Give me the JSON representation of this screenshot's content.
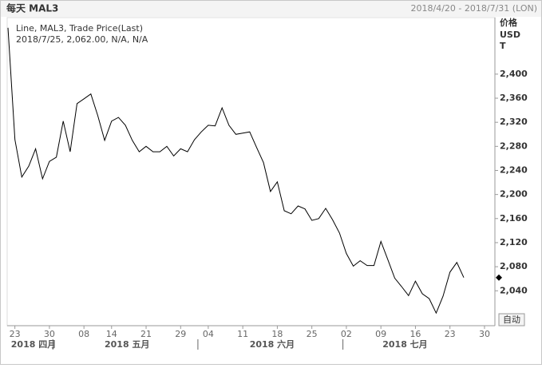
{
  "chart_data": {
    "type": "line",
    "title": "每天 MAL3",
    "date_range": "2018/4/20 - 2018/7/31 (LON)",
    "y_axis_label": [
      "价格",
      "USD",
      "T"
    ],
    "legend_lines": [
      "Line, MAL3, Trade Price(Last)",
      "2018/7/25, 2,062.00, N/A, N/A"
    ],
    "button": "自动",
    "x": [
      "2018/4/20",
      "2018/4/23",
      "2018/4/24",
      "2018/4/25",
      "2018/4/26",
      "2018/4/27",
      "2018/4/30",
      "2018/5/1",
      "2018/5/2",
      "2018/5/3",
      "2018/5/4",
      "2018/5/8",
      "2018/5/9",
      "2018/5/10",
      "2018/5/11",
      "2018/5/14",
      "2018/5/15",
      "2018/5/16",
      "2018/5/17",
      "2018/5/18",
      "2018/5/21",
      "2018/5/22",
      "2018/5/23",
      "2018/5/24",
      "2018/5/25",
      "2018/5/29",
      "2018/5/30",
      "2018/5/31",
      "2018/6/1",
      "2018/6/4",
      "2018/6/5",
      "2018/6/6",
      "2018/6/7",
      "2018/6/8",
      "2018/6/11",
      "2018/6/12",
      "2018/6/13",
      "2018/6/14",
      "2018/6/15",
      "2018/6/18",
      "2018/6/19",
      "2018/6/20",
      "2018/6/21",
      "2018/6/22",
      "2018/6/25",
      "2018/6/26",
      "2018/6/27",
      "2018/6/28",
      "2018/6/29",
      "2018/7/2",
      "2018/7/3",
      "2018/7/4",
      "2018/7/5",
      "2018/7/6",
      "2018/7/9",
      "2018/7/10",
      "2018/7/11",
      "2018/7/12",
      "2018/7/13",
      "2018/7/16",
      "2018/7/17",
      "2018/7/18",
      "2018/7/19",
      "2018/7/20",
      "2018/7/23",
      "2018/7/24",
      "2018/7/25"
    ],
    "series": [
      {
        "name": "MAL3",
        "color": "#000000",
        "values": [
          2477,
          2291,
          2229,
          2247,
          2276,
          2226,
          2255,
          2262,
          2322,
          2271,
          2351,
          2359,
          2367,
          2331,
          2290,
          2322,
          2328,
          2315,
          2290,
          2271,
          2280,
          2271,
          2271,
          2280,
          2264,
          2276,
          2271,
          2291,
          2304,
          2315,
          2314,
          2344,
          2315,
          2300,
          2302,
          2304,
          2278,
          2253,
          2205,
          2221,
          2173,
          2168,
          2181,
          2176,
          2157,
          2160,
          2177,
          2158,
          2136,
          2102,
          2081,
          2090,
          2082,
          2082,
          2122,
          2092,
          2061,
          2047,
          2032,
          2056,
          2035,
          2027,
          2003,
          2031,
          2071,
          2087,
          2062
        ]
      }
    ],
    "ylim": [
      1982,
      2494
    ],
    "yticks": [
      {
        "value": 2040,
        "label": "2,040"
      },
      {
        "value": 2080,
        "label": "2,080"
      },
      {
        "value": 2120,
        "label": "2,120"
      },
      {
        "value": 2160,
        "label": "2,160"
      },
      {
        "value": 2200,
        "label": "2,200"
      },
      {
        "value": 2240,
        "label": "2,240"
      },
      {
        "value": 2280,
        "label": "2,280"
      },
      {
        "value": 2320,
        "label": "2,320"
      },
      {
        "value": 2360,
        "label": "2,360"
      },
      {
        "value": 2400,
        "label": "2,400"
      }
    ],
    "xticks": [
      {
        "value": "2018/4/23",
        "label": "23"
      },
      {
        "value": "2018/4/30",
        "label": "30"
      },
      {
        "value": "2018/5/8",
        "label": "08"
      },
      {
        "value": "2018/5/14",
        "label": "14"
      },
      {
        "value": "2018/5/21",
        "label": "21"
      },
      {
        "value": "2018/5/29",
        "label": "29"
      },
      {
        "value": "2018/6/4",
        "label": "04"
      },
      {
        "value": "2018/6/11",
        "label": "11"
      },
      {
        "value": "2018/6/18",
        "label": "18"
      },
      {
        "value": "2018/6/25",
        "label": "25"
      },
      {
        "value": "2018/7/2",
        "label": "02"
      },
      {
        "value": "2018/7/9",
        "label": "09"
      },
      {
        "value": "2018/7/16",
        "label": "16"
      },
      {
        "value": "2018/7/23",
        "label": "23"
      },
      {
        "value": "2018/7/30",
        "label": "30"
      }
    ],
    "months": [
      {
        "value": "2018/4/20",
        "label": "2018 四月"
      },
      {
        "value": "2018/5/1",
        "label": "2018 五月"
      },
      {
        "value": "2018/6/1",
        "label": "2018 六月"
      },
      {
        "value": "2018/7/2",
        "label": "2018 七月"
      }
    ]
  }
}
